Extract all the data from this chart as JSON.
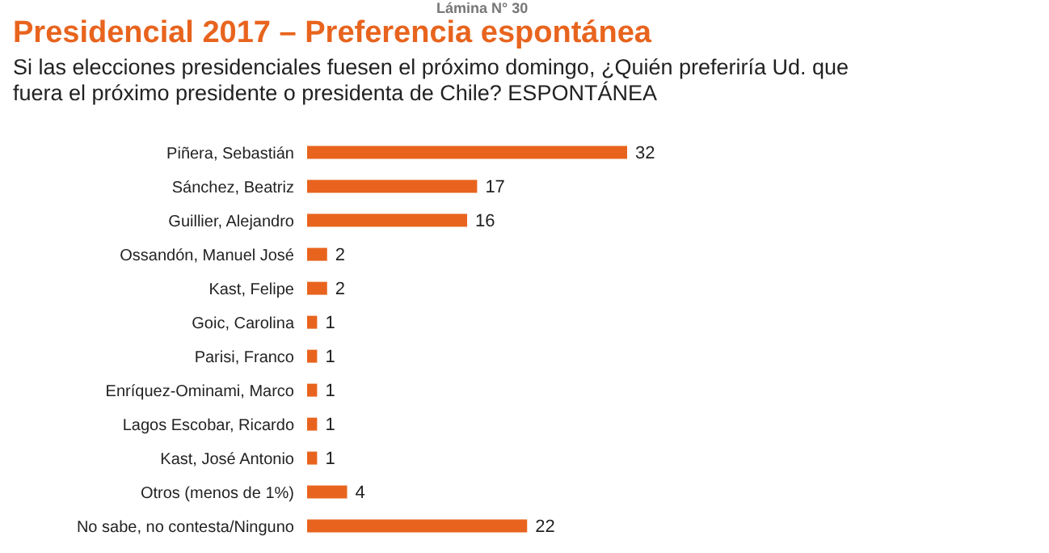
{
  "chart_data": {
    "type": "bar",
    "orientation": "horizontal",
    "title": "Presidencial 2017 – Preferencia espontánea",
    "subtitle": "Si las elecciones presidenciales fuesen el próximo domingo, ¿Quién preferiría Ud. que fuera el próximo presidente o presidenta de Chile? ESPONTÁNEA",
    "annotations": [
      "Lámina N° 30"
    ],
    "categories": [
      "Piñera, Sebastián",
      "Sánchez, Beatriz",
      "Guillier, Alejandro",
      "Ossandón, Manuel José",
      "Kast, Felipe",
      "Goic, Carolina",
      "Parisi, Franco",
      "Enríquez-Ominami, Marco",
      "Lagos Escobar, Ricardo",
      "Kast, José Antonio",
      "Otros (menos de 1%)",
      "No sabe, no contesta/Ninguno"
    ],
    "values": [
      32,
      17,
      16,
      2,
      2,
      1,
      1,
      1,
      1,
      1,
      4,
      22
    ],
    "color": "#e8641e",
    "data_labels": true
  }
}
